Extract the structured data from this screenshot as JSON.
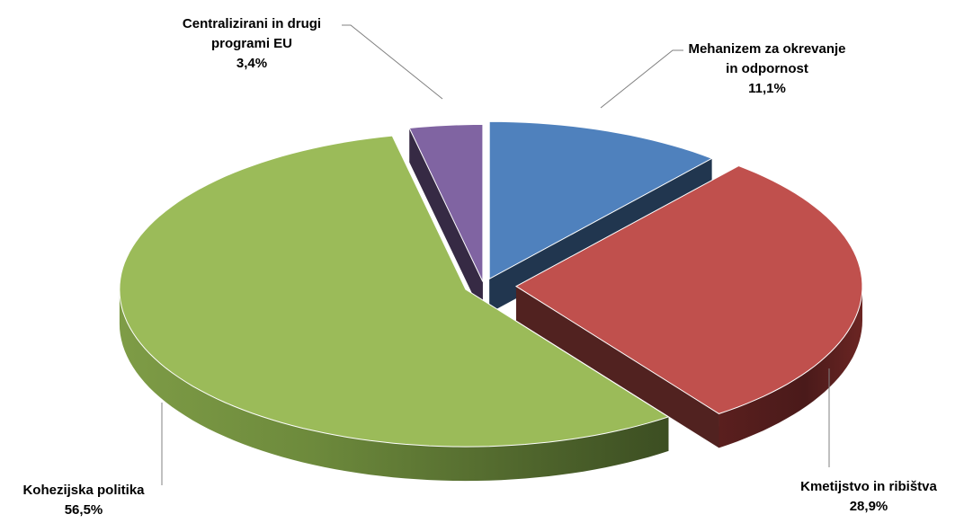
{
  "chart_data": {
    "type": "pie",
    "title": "",
    "slices": [
      {
        "name_lines": [
          "Mehanizem za okrevanje",
          "in odpornost"
        ],
        "value": 11.1,
        "value_label": "11,1%",
        "color": "#4F81BD"
      },
      {
        "name_lines": [
          "Kmetijstvo in ribištva"
        ],
        "value": 28.9,
        "value_label": "28,9%",
        "color": "#C0504D"
      },
      {
        "name_lines": [
          "Kohezijska politika"
        ],
        "value": 56.5,
        "value_label": "56,5%",
        "color": "#9BBB59"
      },
      {
        "name_lines": [
          "Centralizirani in drugi",
          "programi EU"
        ],
        "value": 3.4,
        "value_label": "3,4%",
        "color": "#8064A2"
      }
    ],
    "legend": "none",
    "style": "3d-exploded"
  }
}
